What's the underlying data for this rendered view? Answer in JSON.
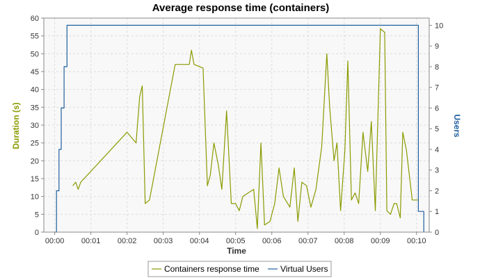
{
  "chart_data": {
    "type": "line",
    "title": "Average response time (containers)",
    "xlabel": "Time",
    "ylabel_left": "Duration (s)",
    "ylabel_right": "Users",
    "x_range_minutes": [
      -0.3,
      10.35
    ],
    "y_left_range": [
      0,
      60
    ],
    "y_right_range": [
      0,
      10.35
    ],
    "x_ticks": [
      {
        "label": "00:00",
        "minute": 0
      },
      {
        "label": "00:01",
        "minute": 1
      },
      {
        "label": "00:02",
        "minute": 2
      },
      {
        "label": "00:03",
        "minute": 3
      },
      {
        "label": "00:04",
        "minute": 4
      },
      {
        "label": "00:05",
        "minute": 5
      },
      {
        "label": "00:06",
        "minute": 6
      },
      {
        "label": "00:07",
        "minute": 7
      },
      {
        "label": "00:08",
        "minute": 8
      },
      {
        "label": "00:09",
        "minute": 9
      },
      {
        "label": "00:10",
        "minute": 10
      }
    ],
    "y_left_ticks": [
      0,
      5,
      10,
      15,
      20,
      25,
      30,
      35,
      40,
      45,
      50,
      55,
      60
    ],
    "y_right_ticks": [
      0,
      1,
      2,
      3,
      4,
      5,
      6,
      7,
      8,
      9,
      10
    ],
    "grid": true,
    "legend_position": "bottom",
    "colors": {
      "response": "#8a9a00",
      "users": "#1f5f9e",
      "ylabel_left": "#8a9a00",
      "ylabel_right": "#1f5f9e",
      "plot_bg": "#f8f8f8",
      "grid": "#dcdcdc"
    },
    "series": [
      {
        "name": "Containers response time",
        "axis": "left",
        "x": [
          0.5,
          0.58,
          0.65,
          0.72,
          2.0,
          2.25,
          2.35,
          2.42,
          2.5,
          2.62,
          3.33,
          3.72,
          3.78,
          3.85,
          4.1,
          4.22,
          4.3,
          4.4,
          4.52,
          4.62,
          4.75,
          4.88,
          5.0,
          5.1,
          5.2,
          5.35,
          5.5,
          5.6,
          5.7,
          5.8,
          5.95,
          6.08,
          6.2,
          6.32,
          6.5,
          6.62,
          6.72,
          6.83,
          6.96,
          7.08,
          7.22,
          7.38,
          7.52,
          7.6,
          7.72,
          7.8,
          7.9,
          8.02,
          8.1,
          8.2,
          8.3,
          8.4,
          8.52,
          8.65,
          8.75,
          8.86,
          9.0,
          9.12,
          9.18,
          9.28,
          9.38,
          9.45,
          9.55,
          9.62,
          9.72,
          9.88,
          10.05
        ],
        "y": [
          13,
          14,
          12,
          14,
          28,
          25,
          38,
          41,
          8,
          9,
          47,
          47,
          51,
          47,
          46,
          13,
          16,
          25,
          19,
          12,
          34,
          8,
          8,
          6,
          10,
          11,
          12,
          1,
          25,
          2,
          3,
          8,
          18,
          10,
          7,
          18,
          3,
          14,
          13,
          7,
          12,
          24,
          50,
          35,
          20,
          25,
          6,
          23,
          48,
          9,
          11,
          8,
          28,
          17,
          31,
          6,
          57,
          56,
          6,
          5,
          8,
          8,
          4,
          28,
          23,
          9,
          9
        ]
      },
      {
        "name": "Virtual Users",
        "axis": "right",
        "step": true,
        "x": [
          0.0,
          0.05,
          0.12,
          0.18,
          0.26,
          0.34,
          10.0,
          10.05,
          10.2,
          10.2
        ],
        "y": [
          0,
          2,
          4,
          6,
          8,
          10,
          10,
          1,
          1,
          0
        ]
      }
    ]
  }
}
